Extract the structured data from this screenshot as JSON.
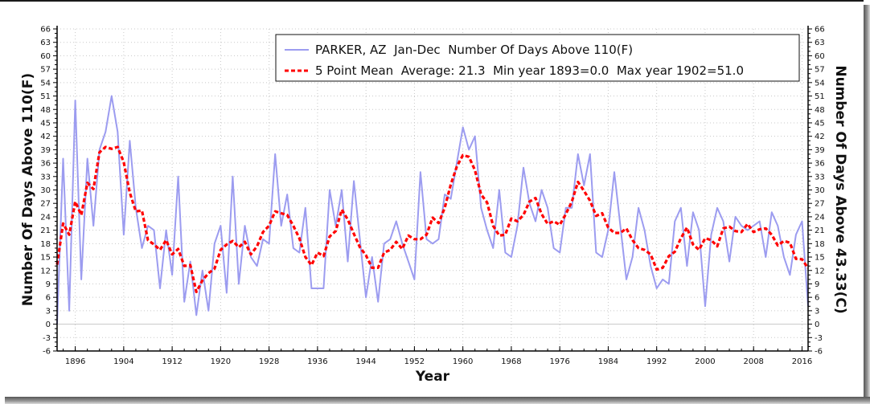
{
  "chart_data": {
    "type": "line",
    "title": "",
    "xlabel": "Year",
    "ylabel": "Number Of Days Above 110(F)",
    "ylabel_right": "Number Of Days Above 43.33(C)",
    "xlim": [
      1893,
      2017
    ],
    "ylim": [
      -6,
      66
    ],
    "x_ticks": [
      "1896",
      "1904",
      "1912",
      "1920",
      "1928",
      "1936",
      "1944",
      "1952",
      "1960",
      "1968",
      "1976",
      "1984",
      "1992",
      "2000",
      "2008",
      "2016"
    ],
    "y_ticks": [
      "-6",
      "-3",
      "0",
      "3",
      "6",
      "9",
      "12",
      "15",
      "18",
      "21",
      "24",
      "27",
      "30",
      "33",
      "36",
      "39",
      "42",
      "45",
      "48",
      "51",
      "54",
      "57",
      "60",
      "63",
      "66"
    ],
    "grid": true,
    "legend_position": "top-right",
    "legend": [
      "PARKER, AZ  Jan-Dec  Number Of Days Above 110(F)",
      "5 Point Mean  Average: 21.3  Min year 1893=0.0  Max year 1902=51.0"
    ],
    "x_start": 1893,
    "series": [
      {
        "name": "PARKER, AZ  Jan-Dec  Number Of Days Above 110(F)",
        "color": "#9c9cf0",
        "style": "solid",
        "values": [
          0,
          37,
          3,
          50,
          10,
          37,
          22,
          39,
          43,
          51,
          43,
          20,
          41,
          26,
          17,
          22,
          21,
          8,
          21,
          11,
          33,
          5,
          14,
          2,
          12,
          3,
          18,
          22,
          7,
          33,
          9,
          22,
          15,
          13,
          19,
          18,
          38,
          22,
          29,
          17,
          16,
          26,
          8,
          8,
          8,
          30,
          22,
          30,
          14,
          32,
          19,
          6,
          15,
          5,
          18,
          19,
          23,
          18,
          14,
          10,
          34,
          19,
          18,
          19,
          29,
          28,
          36,
          44,
          39,
          42,
          26,
          21,
          17,
          30,
          16,
          15,
          22,
          35,
          27,
          23,
          30,
          26,
          17,
          16,
          26,
          26,
          38,
          31,
          38,
          16,
          15,
          21,
          34,
          22,
          10,
          15,
          26,
          21,
          13,
          8,
          10,
          9,
          23,
          26,
          13,
          25,
          21,
          4,
          20,
          26,
          23,
          14,
          24,
          22,
          21,
          22,
          23,
          15,
          25,
          22,
          15,
          11,
          20,
          23,
          4
        ]
      },
      {
        "name": "5 Point Mean",
        "color": "#ff0000",
        "style": "dashed",
        "values": [
          13.3,
          22.5,
          20.0,
          27.4,
          24.4,
          31.6,
          30.2,
          38.4,
          39.6,
          39.2,
          39.6,
          36.2,
          29.4,
          25.2,
          25.4,
          18.8,
          17.8,
          16.6,
          18.8,
          15.6,
          16.8,
          13.0,
          13.2,
          7.2,
          9.8,
          11.4,
          12.4,
          16.6,
          17.8,
          18.6,
          17.2,
          18.4,
          15.6,
          17.4,
          20.6,
          22.0,
          25.2,
          24.8,
          24.4,
          22.0,
          19.2,
          15.0,
          13.2,
          16.0,
          15.2,
          19.6,
          20.8,
          25.6,
          23.4,
          20.2,
          17.2,
          15.4,
          12.6,
          12.6,
          16.0,
          16.6,
          18.4,
          16.8,
          19.8,
          19.0,
          19.0,
          20.0,
          23.8,
          22.6,
          26.0,
          31.2,
          35.2,
          37.8,
          37.4,
          34.4,
          29.0,
          27.2,
          22.0,
          19.8,
          20.0,
          23.6,
          23.0,
          24.4,
          27.4,
          28.2,
          24.6,
          22.4,
          23.0,
          22.2,
          24.6,
          27.4,
          31.8,
          29.8,
          27.6,
          24.2,
          24.8,
          21.6,
          20.4,
          20.4,
          21.4,
          18.8,
          17.0,
          16.6,
          15.6,
          12.2,
          12.6,
          15.2,
          16.2,
          19.2,
          21.6,
          17.8,
          16.6,
          19.2,
          18.8,
          17.4,
          21.4,
          21.8,
          20.8,
          20.6,
          22.4,
          20.6,
          21.2,
          21.4,
          20.0,
          17.6,
          18.6,
          18.2,
          14.6,
          14.5,
          12.5
        ]
      }
    ]
  }
}
